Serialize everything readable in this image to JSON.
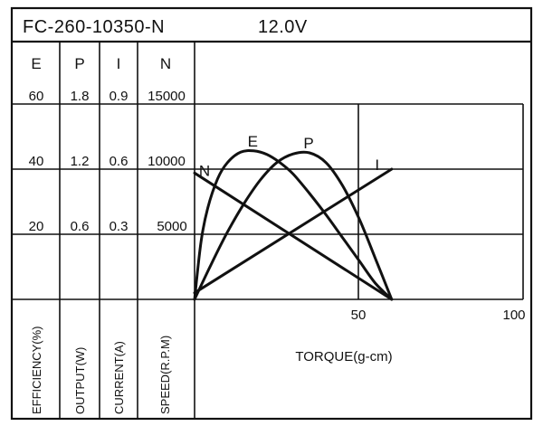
{
  "chart_data": {
    "type": "line",
    "title": "FC-260-10350-N",
    "voltage": "12.0V",
    "xlabel": "TORQUE(g-cm)",
    "xlim": [
      0,
      100
    ],
    "x_ticks": [
      "50",
      "100"
    ],
    "scales": [
      {
        "key": "E",
        "header": "E",
        "axis_label": "EFFICIENCY(%)",
        "max": 60,
        "ticks": [
          "20",
          "40",
          "60"
        ]
      },
      {
        "key": "P",
        "header": "P",
        "axis_label": "OUTPUT(W)",
        "max": 1.8,
        "ticks": [
          "0.6",
          "1.2",
          "1.8"
        ]
      },
      {
        "key": "I",
        "header": "I",
        "axis_label": "CURRENT(A)",
        "max": 0.9,
        "ticks": [
          "0.3",
          "0.6",
          "0.9"
        ]
      },
      {
        "key": "N",
        "header": "N",
        "axis_label": "SPEED(R.P.M)",
        "max": 15000,
        "ticks": [
          "5000",
          "10000",
          "15000"
        ]
      }
    ],
    "series": [
      {
        "name": "E",
        "scale": "E",
        "x": [
          0,
          2,
          4,
          7,
          10,
          14,
          18,
          22,
          26,
          30,
          35,
          40,
          45,
          50,
          55,
          60
        ],
        "y": [
          0,
          18,
          28,
          37,
          42,
          45.2,
          45.6,
          44.5,
          42,
          38.5,
          32.5,
          26,
          19,
          12,
          5,
          0
        ]
      },
      {
        "name": "P",
        "scale": "P",
        "x": [
          0,
          5,
          10,
          15,
          20,
          25,
          30,
          35,
          40,
          45,
          50,
          55,
          60
        ],
        "y": [
          0,
          0.32,
          0.62,
          0.88,
          1.1,
          1.26,
          1.34,
          1.35,
          1.26,
          1.05,
          0.75,
          0.38,
          0
        ]
      },
      {
        "name": "I",
        "scale": "I",
        "x": [
          0,
          60
        ],
        "y": [
          0.03,
          0.6
        ]
      },
      {
        "name": "N",
        "scale": "N",
        "x": [
          0,
          60
        ],
        "y": [
          9700,
          0
        ]
      }
    ],
    "grid": true
  }
}
